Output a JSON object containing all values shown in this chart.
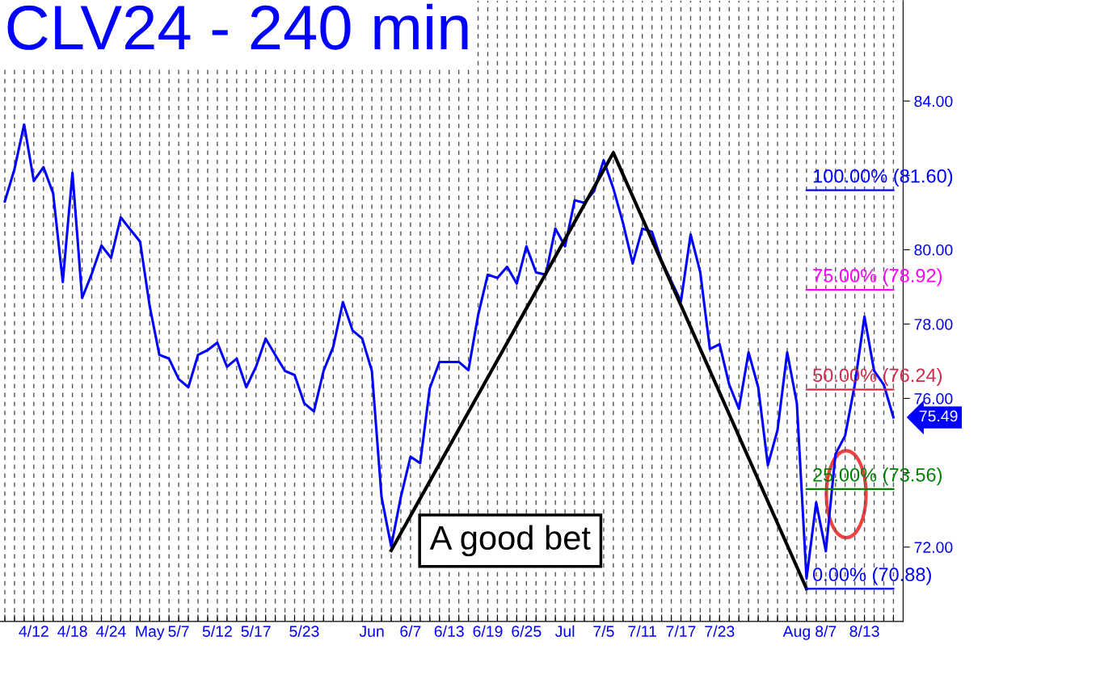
{
  "chart_data": {
    "type": "line",
    "title": "CLV24 - 240 min",
    "categories": [
      null,
      null,
      null,
      "4/12",
      null,
      null,
      null,
      "4/18",
      null,
      null,
      null,
      "4/24",
      null,
      null,
      null,
      "May",
      null,
      null,
      "5/7",
      null,
      null,
      null,
      "5/12",
      null,
      null,
      null,
      "5/17",
      null,
      null,
      null,
      null,
      "5/23",
      null,
      null,
      null,
      null,
      null,
      null,
      "Jun",
      null,
      null,
      null,
      "6/7",
      null,
      null,
      null,
      "6/13",
      null,
      null,
      null,
      "6/19",
      null,
      null,
      null,
      "6/25",
      null,
      null,
      null,
      "Jul",
      null,
      null,
      null,
      "7/5",
      null,
      null,
      null,
      "7/11",
      null,
      null,
      null,
      "7/17",
      null,
      null,
      null,
      "7/23",
      null,
      null,
      null,
      null,
      null,
      null,
      null,
      "Aug",
      null,
      null,
      "8/7",
      null,
      null,
      null,
      "8/13",
      null,
      null,
      null
    ],
    "ylim": [
      70.0,
      86.7
    ],
    "yticks": [
      {
        "value": 72,
        "label": "72.00"
      },
      {
        "value": 74,
        "label": null
      },
      {
        "value": 76,
        "label": "76.00"
      },
      {
        "value": 78,
        "label": "78.00"
      },
      {
        "value": 80,
        "label": "80.00"
      },
      {
        "value": 82,
        "label": null
      },
      {
        "value": 84,
        "label": "84.00"
      }
    ],
    "grid": "x",
    "legend": false,
    "series": [
      {
        "color": "#0000ff",
        "values": [
          81.3,
          82.17,
          83.37,
          81.85,
          82.22,
          81.52,
          79.13,
          82.07,
          78.7,
          79.35,
          80.11,
          79.78,
          80.87,
          80.54,
          80.22,
          78.48,
          77.17,
          77.07,
          76.52,
          76.3,
          77.17,
          77.3,
          77.5,
          76.85,
          77.07,
          76.3,
          76.85,
          77.61,
          77.17,
          76.74,
          76.63,
          75.87,
          75.65,
          76.74,
          77.39,
          78.59,
          77.83,
          77.61,
          76.74,
          73.35,
          72.02,
          73.35,
          74.43,
          74.26,
          76.28,
          76.98,
          76.98,
          76.98,
          76.76,
          78.24,
          79.33,
          79.24,
          79.54,
          79.09,
          80.09,
          79.39,
          79.33,
          80.57,
          80.09,
          81.33,
          81.26,
          81.57,
          82.41,
          81.65,
          80.72,
          79.63,
          80.57,
          80.48,
          79.7,
          79.15,
          78.61,
          80.41,
          79.39,
          77.33,
          77.46,
          76.37,
          75.72,
          77.24,
          76.3,
          74.2,
          75.15,
          77.24,
          75.87,
          71.15,
          73.2,
          71.89,
          74.5,
          75.0,
          76.37,
          78.2,
          76.74,
          76.37,
          75.49
        ]
      },
      {
        "color": "#000000",
        "values": [
          null,
          null,
          null,
          null,
          null,
          null,
          null,
          null,
          null,
          null,
          null,
          null,
          null,
          null,
          null,
          null,
          null,
          null,
          null,
          null,
          null,
          null,
          null,
          null,
          null,
          null,
          null,
          null,
          null,
          null,
          null,
          null,
          null,
          null,
          null,
          null,
          null,
          null,
          null,
          null,
          71.91,
          null,
          null,
          null,
          null,
          null,
          null,
          null,
          null,
          null,
          null,
          null,
          null,
          null,
          null,
          null,
          null,
          null,
          null,
          null,
          null,
          null,
          null,
          82.61,
          null,
          null,
          null,
          null,
          null,
          null,
          null,
          null,
          null,
          null,
          null,
          null,
          null,
          null,
          null,
          null,
          null,
          null,
          null,
          70.88,
          null,
          null,
          null,
          null,
          null,
          null,
          null,
          null,
          null
        ]
      },
      {
        "name": "100.00% (81.60)",
        "color": "#0000ff",
        "values": [
          null,
          null,
          null,
          null,
          null,
          null,
          null,
          null,
          null,
          null,
          null,
          null,
          null,
          null,
          null,
          null,
          null,
          null,
          null,
          null,
          null,
          null,
          null,
          null,
          null,
          null,
          null,
          null,
          null,
          null,
          null,
          null,
          null,
          null,
          null,
          null,
          null,
          null,
          null,
          null,
          null,
          null,
          null,
          null,
          null,
          null,
          null,
          null,
          null,
          null,
          null,
          null,
          null,
          null,
          null,
          null,
          null,
          null,
          null,
          null,
          null,
          null,
          null,
          null,
          null,
          null,
          null,
          null,
          null,
          null,
          null,
          null,
          null,
          null,
          null,
          null,
          null,
          null,
          null,
          null,
          null,
          null,
          null,
          81.6,
          81.6,
          81.6,
          81.6,
          81.6,
          81.6,
          81.6,
          81.6,
          81.6,
          81.6
        ]
      },
      {
        "name": "75.00% (78.92)",
        "color": "#ff00ff",
        "values": [
          null,
          null,
          null,
          null,
          null,
          null,
          null,
          null,
          null,
          null,
          null,
          null,
          null,
          null,
          null,
          null,
          null,
          null,
          null,
          null,
          null,
          null,
          null,
          null,
          null,
          null,
          null,
          null,
          null,
          null,
          null,
          null,
          null,
          null,
          null,
          null,
          null,
          null,
          null,
          null,
          null,
          null,
          null,
          null,
          null,
          null,
          null,
          null,
          null,
          null,
          null,
          null,
          null,
          null,
          null,
          null,
          null,
          null,
          null,
          null,
          null,
          null,
          null,
          null,
          null,
          null,
          null,
          null,
          null,
          null,
          null,
          null,
          null,
          null,
          null,
          null,
          null,
          null,
          null,
          null,
          null,
          null,
          null,
          78.92,
          78.92,
          78.92,
          78.92,
          78.92,
          78.92,
          78.92,
          78.92,
          78.92,
          78.92
        ]
      },
      {
        "name": "50.00% (76.24)",
        "color": "#d42a4a",
        "values": [
          null,
          null,
          null,
          null,
          null,
          null,
          null,
          null,
          null,
          null,
          null,
          null,
          null,
          null,
          null,
          null,
          null,
          null,
          null,
          null,
          null,
          null,
          null,
          null,
          null,
          null,
          null,
          null,
          null,
          null,
          null,
          null,
          null,
          null,
          null,
          null,
          null,
          null,
          null,
          null,
          null,
          null,
          null,
          null,
          null,
          null,
          null,
          null,
          null,
          null,
          null,
          null,
          null,
          null,
          null,
          null,
          null,
          null,
          null,
          null,
          null,
          null,
          null,
          null,
          null,
          null,
          null,
          null,
          null,
          null,
          null,
          null,
          null,
          null,
          null,
          null,
          null,
          null,
          null,
          null,
          null,
          null,
          null,
          76.24,
          76.24,
          76.24,
          76.24,
          76.24,
          76.24,
          76.24,
          76.24,
          76.24,
          76.24
        ]
      },
      {
        "name": "25.00% (73.56)",
        "color": "#008000",
        "values": [
          null,
          null,
          null,
          null,
          null,
          null,
          null,
          null,
          null,
          null,
          null,
          null,
          null,
          null,
          null,
          null,
          null,
          null,
          null,
          null,
          null,
          null,
          null,
          null,
          null,
          null,
          null,
          null,
          null,
          null,
          null,
          null,
          null,
          null,
          null,
          null,
          null,
          null,
          null,
          null,
          null,
          null,
          null,
          null,
          null,
          null,
          null,
          null,
          null,
          null,
          null,
          null,
          null,
          null,
          null,
          null,
          null,
          null,
          null,
          null,
          null,
          null,
          null,
          null,
          null,
          null,
          null,
          null,
          null,
          null,
          null,
          null,
          null,
          null,
          null,
          null,
          null,
          null,
          null,
          null,
          null,
          null,
          null,
          73.56,
          73.56,
          73.56,
          73.56,
          73.56,
          73.56,
          73.56,
          73.56,
          73.56,
          73.56
        ]
      },
      {
        "name": "0.00% (70.88)",
        "color": "#0000ff",
        "values": [
          null,
          null,
          null,
          null,
          null,
          null,
          null,
          null,
          null,
          null,
          null,
          null,
          null,
          null,
          null,
          null,
          null,
          null,
          null,
          null,
          null,
          null,
          null,
          null,
          null,
          null,
          null,
          null,
          null,
          null,
          null,
          null,
          null,
          null,
          null,
          null,
          null,
          null,
          null,
          null,
          null,
          null,
          null,
          null,
          null,
          null,
          null,
          null,
          null,
          null,
          null,
          null,
          null,
          null,
          null,
          null,
          null,
          null,
          null,
          null,
          null,
          null,
          null,
          null,
          null,
          null,
          null,
          null,
          null,
          null,
          null,
          null,
          null,
          null,
          null,
          null,
          null,
          null,
          null,
          null,
          null,
          null,
          null,
          70.88,
          70.88,
          70.88,
          70.88,
          70.88,
          70.88,
          70.88,
          70.88,
          70.88,
          70.88
        ]
      }
    ],
    "annotations": [
      "A good bet",
      "75.49"
    ]
  }
}
